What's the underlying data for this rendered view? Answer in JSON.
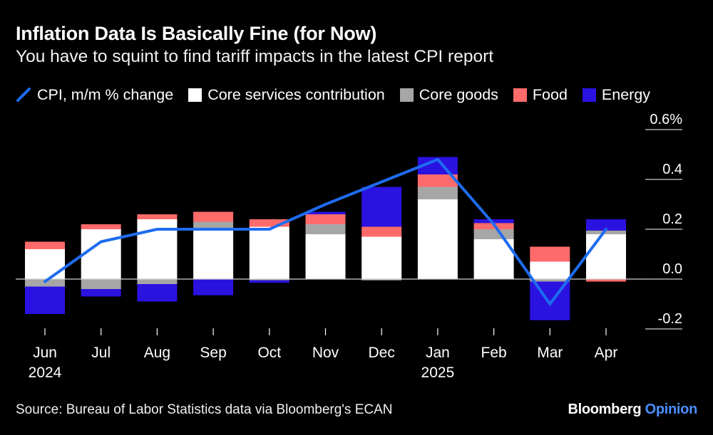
{
  "header": {
    "title": "Inflation Data Is Basically Fine (for Now)",
    "subtitle": "You have to squint to find tariff impacts in the latest CPI report"
  },
  "legend": [
    {
      "key": "cpi",
      "label": "CPI, m/m % change",
      "color": "#1e6cf0",
      "icon": "line-icon"
    },
    {
      "key": "core_services",
      "label": "Core services contribution",
      "color": "#ffffff",
      "icon": "square-icon"
    },
    {
      "key": "core_goods",
      "label": "Core goods",
      "color": "#a6a6a6",
      "icon": "square-icon"
    },
    {
      "key": "food",
      "label": "Food",
      "color": "#ff6b6b",
      "icon": "square-icon"
    },
    {
      "key": "energy",
      "label": "Energy",
      "color": "#2a12e0",
      "icon": "square-icon"
    }
  ],
  "chart_data": {
    "type": "bar",
    "stacked": true,
    "categories": [
      "Jun",
      "Jul",
      "Aug",
      "Sep",
      "Oct",
      "Nov",
      "Dec",
      "Jan",
      "Feb",
      "Mar",
      "Apr"
    ],
    "year_labels": {
      "Jun": "2024",
      "Jan": "2025"
    },
    "series": [
      {
        "name": "Core services contribution",
        "color": "#ffffff",
        "values": [
          0.12,
          0.2,
          0.24,
          0.2,
          0.21,
          0.18,
          0.17,
          0.32,
          0.16,
          0.07,
          0.18
        ]
      },
      {
        "name": "Core goods",
        "color": "#a6a6a6",
        "values": [
          -0.03,
          -0.04,
          -0.02,
          0.03,
          -0.005,
          0.04,
          -0.005,
          0.05,
          0.04,
          -0.01,
          0.015
        ]
      },
      {
        "name": "Food",
        "color": "#ff6b6b",
        "values": [
          0.03,
          0.02,
          0.02,
          0.04,
          0.03,
          0.04,
          0.04,
          0.05,
          0.025,
          0.06,
          -0.01
        ]
      },
      {
        "name": "Energy",
        "color": "#2a12e0",
        "values": [
          -0.11,
          -0.03,
          -0.07,
          -0.065,
          -0.01,
          0.01,
          0.16,
          0.07,
          0.015,
          -0.155,
          0.045
        ]
      }
    ],
    "line": {
      "name": "CPI, m/m % change",
      "color": "#1e6cf0",
      "values": [
        -0.01,
        0.15,
        0.2,
        0.2,
        0.2,
        0.3,
        0.39,
        0.48,
        0.22,
        -0.1,
        0.2
      ]
    },
    "ylim": [
      -0.2,
      0.6
    ],
    "yticks": [
      -0.2,
      0.0,
      0.2,
      0.4,
      0.6
    ],
    "ytick_labels": [
      "-0.2",
      "0.0",
      "0.2",
      "0.4",
      "0.6%"
    ],
    "grid": false,
    "xlabel": "",
    "ylabel": ""
  },
  "footer": {
    "source": "Source: Bureau of Labor Statistics data via Bloomberg's ECAN",
    "brand_main": "Bloomberg",
    "brand_sub": "Opinion"
  }
}
